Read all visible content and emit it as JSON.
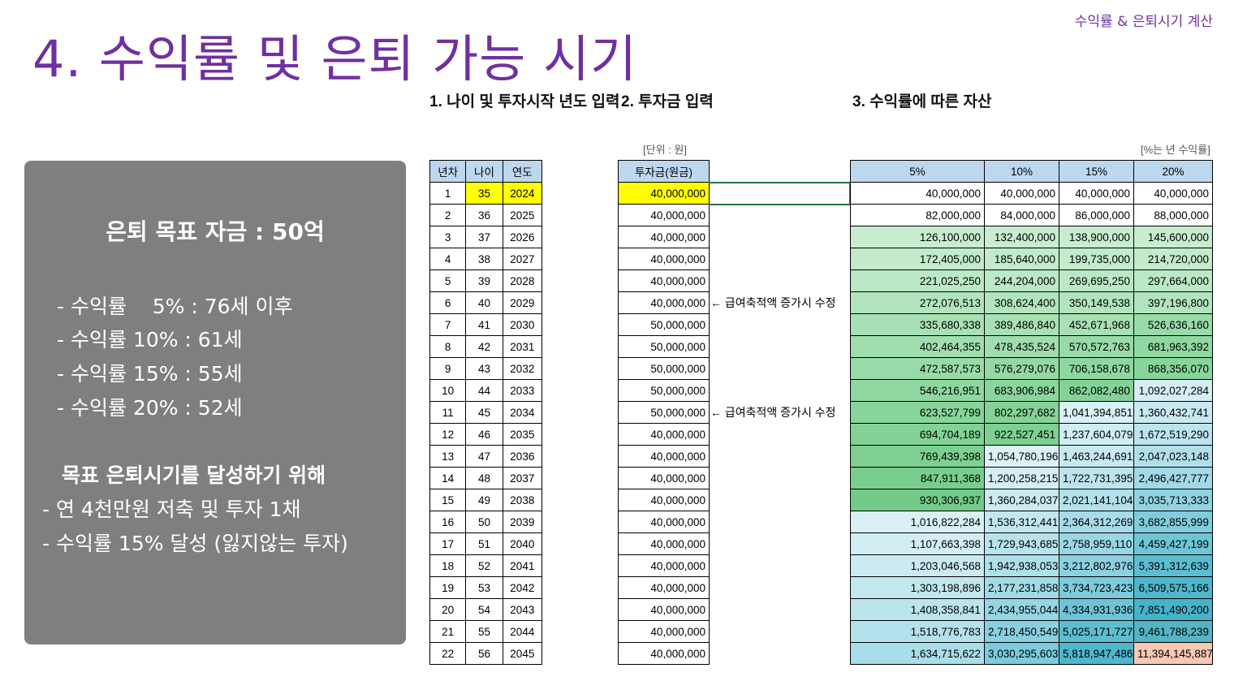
{
  "corner_label": "수익률 & 은퇴시기 계산",
  "title": "4. 수익률 및 은퇴 가능 시기",
  "sections": {
    "s1": "1. 나이 및 투자시작 년도 입력",
    "s2": "2. 투자금 입력",
    "s3": "3. 수익률에 따른 자산"
  },
  "units": {
    "won": "[단위 : 원]",
    "rate": "[%는 년 수익률]"
  },
  "summary": {
    "target": "은퇴 목표 자금 : 50억",
    "lines": [
      "- 수익률    5% : 76세 이후",
      "- 수익률 10% : 61세",
      "- 수익률 15% : 55세",
      "- 수익률 20% : 52세"
    ],
    "subheading": "목표 은퇴시기를 달성하기 위해",
    "goals": [
      "- 연 4천만원 저축 및 투자 1채",
      "- 수익률 15% 달성 (잃지않는 투자)"
    ]
  },
  "age_table": {
    "headers": [
      "년차",
      "나이",
      "연도"
    ],
    "rows": [
      [
        "1",
        "35",
        "2024"
      ],
      [
        "2",
        "36",
        "2025"
      ],
      [
        "3",
        "37",
        "2026"
      ],
      [
        "4",
        "38",
        "2027"
      ],
      [
        "5",
        "39",
        "2028"
      ],
      [
        "6",
        "40",
        "2029"
      ],
      [
        "7",
        "41",
        "2030"
      ],
      [
        "8",
        "42",
        "2031"
      ],
      [
        "9",
        "43",
        "2032"
      ],
      [
        "10",
        "44",
        "2033"
      ],
      [
        "11",
        "45",
        "2034"
      ],
      [
        "12",
        "46",
        "2035"
      ],
      [
        "13",
        "47",
        "2036"
      ],
      [
        "14",
        "48",
        "2037"
      ],
      [
        "15",
        "49",
        "2038"
      ],
      [
        "16",
        "50",
        "2039"
      ],
      [
        "17",
        "51",
        "2040"
      ],
      [
        "18",
        "52",
        "2041"
      ],
      [
        "19",
        "53",
        "2042"
      ],
      [
        "20",
        "54",
        "2043"
      ],
      [
        "21",
        "55",
        "2044"
      ],
      [
        "22",
        "56",
        "2045"
      ]
    ]
  },
  "invest_table": {
    "header": "투자금(원금)",
    "rows": [
      "40,000,000",
      "40,000,000",
      "40,000,000",
      "40,000,000",
      "40,000,000",
      "40,000,000",
      "50,000,000",
      "50,000,000",
      "50,000,000",
      "50,000,000",
      "50,000,000",
      "40,000,000",
      "40,000,000",
      "40,000,000",
      "40,000,000",
      "40,000,000",
      "40,000,000",
      "40,000,000",
      "40,000,000",
      "40,000,000",
      "40,000,000",
      "40,000,000"
    ],
    "notes": [
      {
        "row": 6,
        "text": "← 급여축적액 증가시 수정"
      },
      {
        "row": 11,
        "text": "← 급여축적액 증가시 수정"
      }
    ]
  },
  "asset_table": {
    "headers": [
      "5%",
      "10%",
      "15%",
      "20%"
    ],
    "rows": [
      [
        "40,000,000",
        "40,000,000",
        "40,000,000",
        "40,000,000"
      ],
      [
        "82,000,000",
        "84,000,000",
        "86,000,000",
        "88,000,000"
      ],
      [
        "126,100,000",
        "132,400,000",
        "138,900,000",
        "145,600,000"
      ],
      [
        "172,405,000",
        "185,640,000",
        "199,735,000",
        "214,720,000"
      ],
      [
        "221,025,250",
        "244,204,000",
        "269,695,250",
        "297,664,000"
      ],
      [
        "272,076,513",
        "308,624,400",
        "350,149,538",
        "397,196,800"
      ],
      [
        "335,680,338",
        "389,486,840",
        "452,671,968",
        "526,636,160"
      ],
      [
        "402,464,355",
        "478,435,524",
        "570,572,763",
        "681,963,392"
      ],
      [
        "472,587,573",
        "576,279,076",
        "706,158,678",
        "868,356,070"
      ],
      [
        "546,216,951",
        "683,906,984",
        "862,082,480",
        "1,092,027,284"
      ],
      [
        "623,527,799",
        "802,297,682",
        "1,041,394,851",
        "1,360,432,741"
      ],
      [
        "694,704,189",
        "922,527,451",
        "1,237,604,079",
        "1,672,519,290"
      ],
      [
        "769,439,398",
        "1,054,780,196",
        "1,463,244,691",
        "2,047,023,148"
      ],
      [
        "847,911,368",
        "1,200,258,215",
        "1,722,731,395",
        "2,496,427,777"
      ],
      [
        "930,306,937",
        "1,360,284,037",
        "2,021,141,104",
        "3,035,713,333"
      ],
      [
        "1,016,822,284",
        "1,536,312,441",
        "2,364,312,269",
        "3,682,855,999"
      ],
      [
        "1,107,663,398",
        "1,729,943,685",
        "2,758,959,110",
        "4,459,427,199"
      ],
      [
        "1,203,046,568",
        "1,942,938,053",
        "3,212,802,976",
        "5,391,312,639"
      ],
      [
        "1,303,198,896",
        "2,177,231,858",
        "3,734,723,423",
        "6,509,575,166"
      ],
      [
        "1,408,358,841",
        "2,434,955,044",
        "4,334,931,936",
        "7,851,490,200"
      ],
      [
        "1,518,776,783",
        "2,718,450,549",
        "5,025,171,727",
        "9,461,788,239"
      ],
      [
        "1,634,715,622",
        "3,030,295,603",
        "5,818,947,486",
        "11,394,145,887"
      ]
    ],
    "colors": [
      [
        "#ffffff",
        "#ffffff",
        "#ffffff",
        "#ffffff"
      ],
      [
        "#ffffff",
        "#ffffff",
        "#ffffff",
        "#ffffff"
      ],
      [
        "#c8ecd0",
        "#c8ecd0",
        "#c8ecd0",
        "#c8ecd0"
      ],
      [
        "#c2eacb",
        "#c2eacb",
        "#c2eacb",
        "#c2eacb"
      ],
      [
        "#bbe8c6",
        "#bbe8c6",
        "#bbe8c6",
        "#bbe8c6"
      ],
      [
        "#b2e5be",
        "#b2e5be",
        "#b2e5be",
        "#b2e5be"
      ],
      [
        "#a8e1b5",
        "#a8e1b5",
        "#a8e1b5",
        "#98dba8"
      ],
      [
        "#a0deae",
        "#a0deae",
        "#98dba8",
        "#90d8a1"
      ],
      [
        "#98dba8",
        "#94d9a4",
        "#8fd7a0",
        "#88d59b"
      ],
      [
        "#8fd7a0",
        "#8ad59c",
        "#84d297",
        "#d4eef4"
      ],
      [
        "#88d59b",
        "#84d297",
        "#d9f0f5",
        "#c9e9f1"
      ],
      [
        "#82d295",
        "#7dd091",
        "#d0edf3",
        "#bde4ee"
      ],
      [
        "#7dd091",
        "#dbf1f6",
        "#c7e9f0",
        "#b0dfea"
      ],
      [
        "#78ce8d",
        "#d4eef4",
        "#bde4ee",
        "#a2d9e6"
      ],
      [
        "#72cb88",
        "#cbeaf1",
        "#b2e0eb",
        "#92d3e1"
      ],
      [
        "#d9f0f5",
        "#c2e7ef",
        "#a7dbe7",
        "#81ccdc"
      ],
      [
        "#d2edf3",
        "#b8e3ec",
        "#9ad6e4",
        "#6fc5d6"
      ],
      [
        "#cbeaf1",
        "#ade0ea",
        "#8cd0e0",
        "#5dbdd0"
      ],
      [
        "#c3e7ef",
        "#a2dae6",
        "#7dcadb",
        "#4fb7cb"
      ],
      [
        "#bbe4ed",
        "#96d5e3",
        "#6dc4d7",
        "#46b3c8"
      ],
      [
        "#b3e1eb",
        "#89d0df",
        "#5dbdd0",
        "#55b4c4"
      ],
      [
        "#aaddea",
        "#7ccbdc",
        "#4fb7cb",
        "#f8c8b6"
      ]
    ]
  }
}
